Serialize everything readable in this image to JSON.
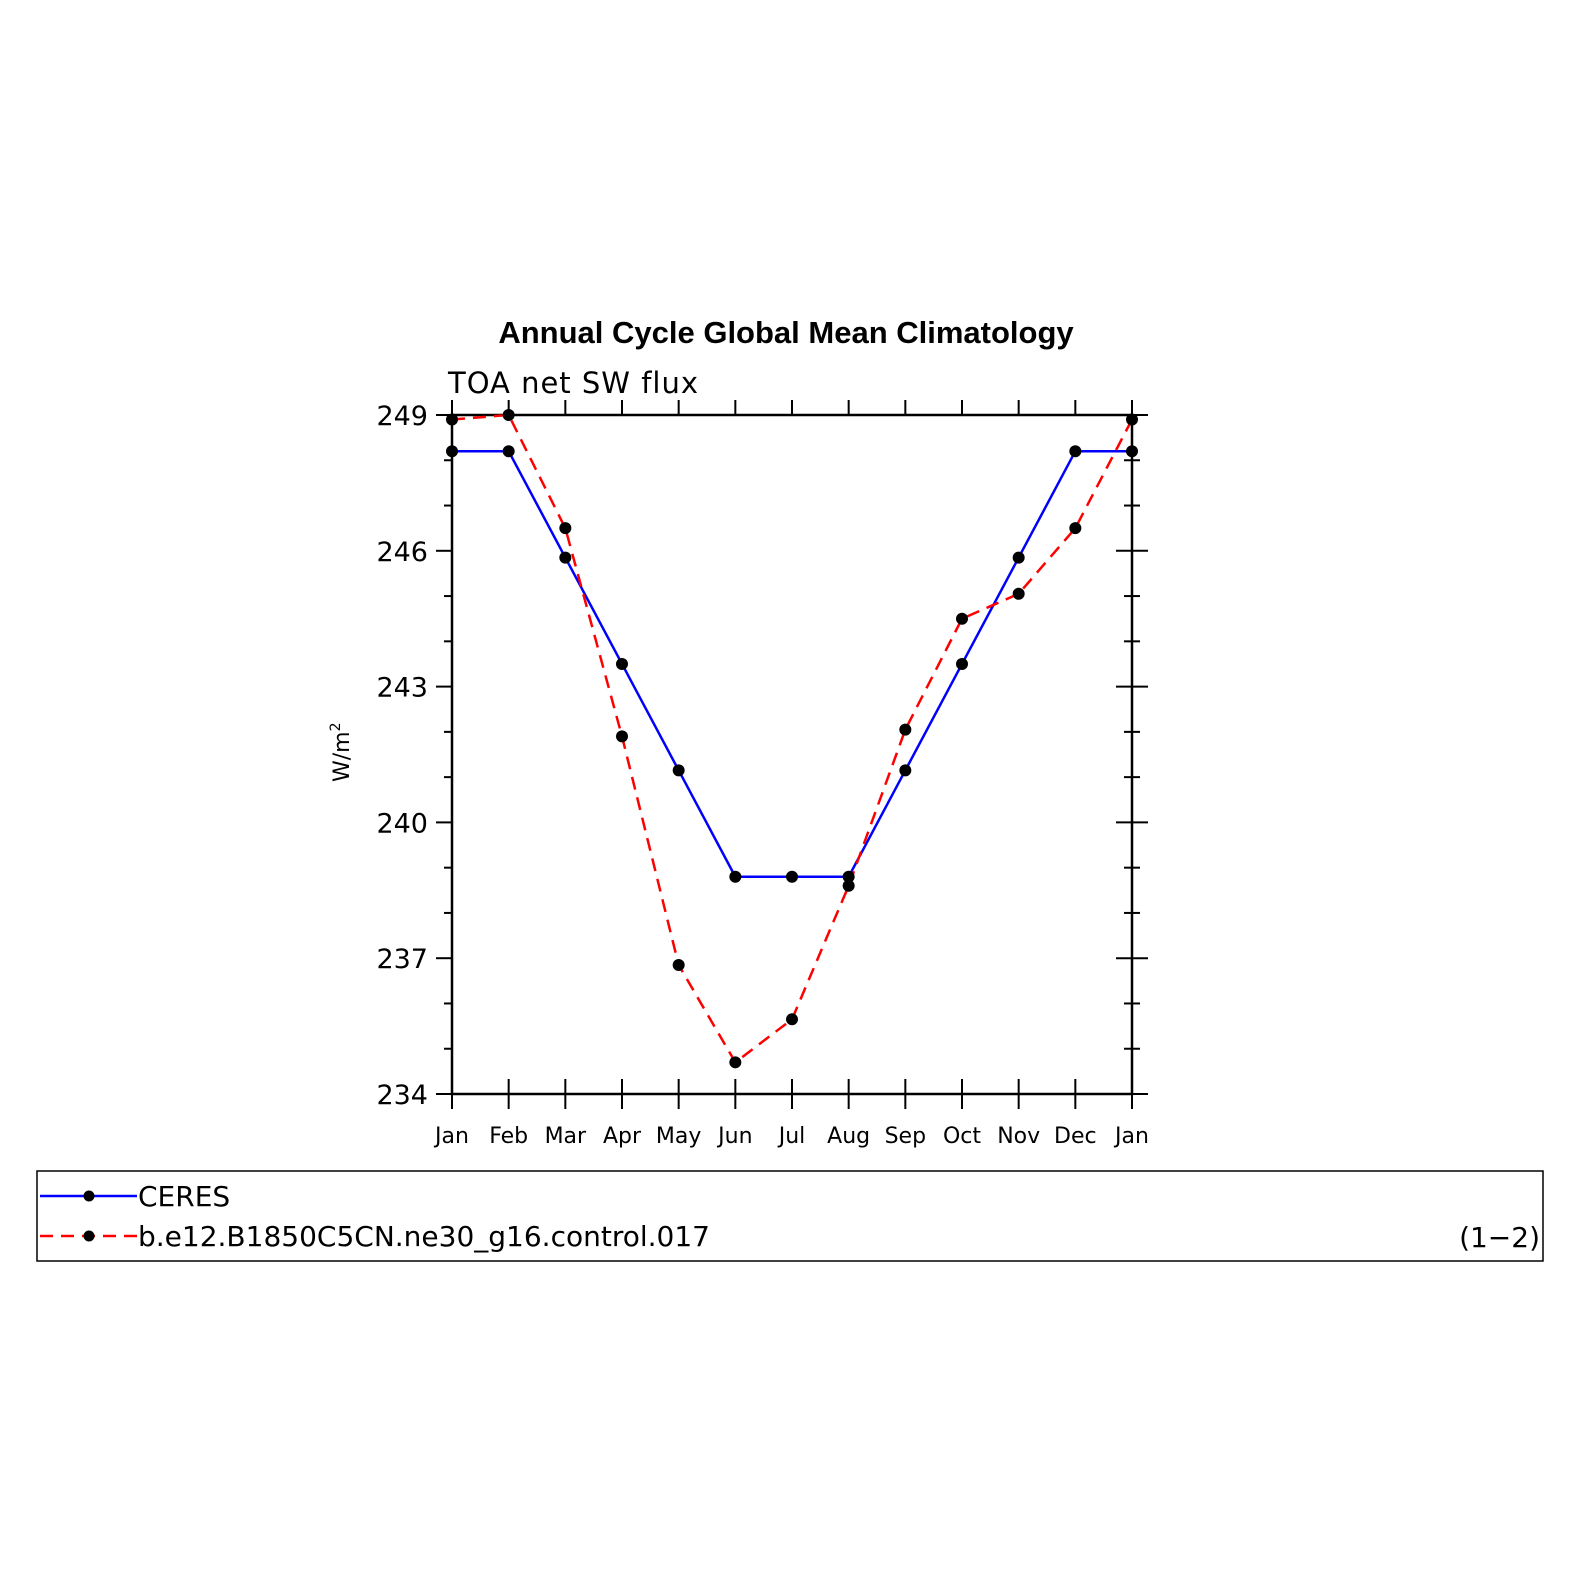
{
  "chart_data": {
    "type": "line",
    "title": "Annual Cycle Global Mean Climatology",
    "subtitle": "TOA net SW flux",
    "ylabel": "W/m",
    "ylabel_sup": "2",
    "xlabel": "",
    "categories": [
      "Jan",
      "Feb",
      "Mar",
      "Apr",
      "May",
      "Jun",
      "Jul",
      "Aug",
      "Sep",
      "Oct",
      "Nov",
      "Dec",
      "Jan"
    ],
    "ylim": [
      234,
      249
    ],
    "yticks": [
      234,
      237,
      240,
      243,
      246,
      249
    ],
    "grid": false,
    "legend_position": "bottom",
    "series": [
      {
        "name": "CERES",
        "color": "#0000ff",
        "style": "solid",
        "values": [
          248.2,
          248.2,
          245.85,
          243.5,
          241.15,
          238.8,
          238.8,
          238.8,
          241.15,
          243.5,
          245.85,
          248.2,
          248.2
        ]
      },
      {
        "name": "b.e12.B1850C5CN.ne30_g16.control.017",
        "color": "#ff0000",
        "style": "dashed",
        "values": [
          248.9,
          249.0,
          246.5,
          241.9,
          236.85,
          234.7,
          235.65,
          238.6,
          242.05,
          244.5,
          245.05,
          246.5,
          248.9
        ]
      }
    ],
    "legend_note": "(1−2)"
  }
}
